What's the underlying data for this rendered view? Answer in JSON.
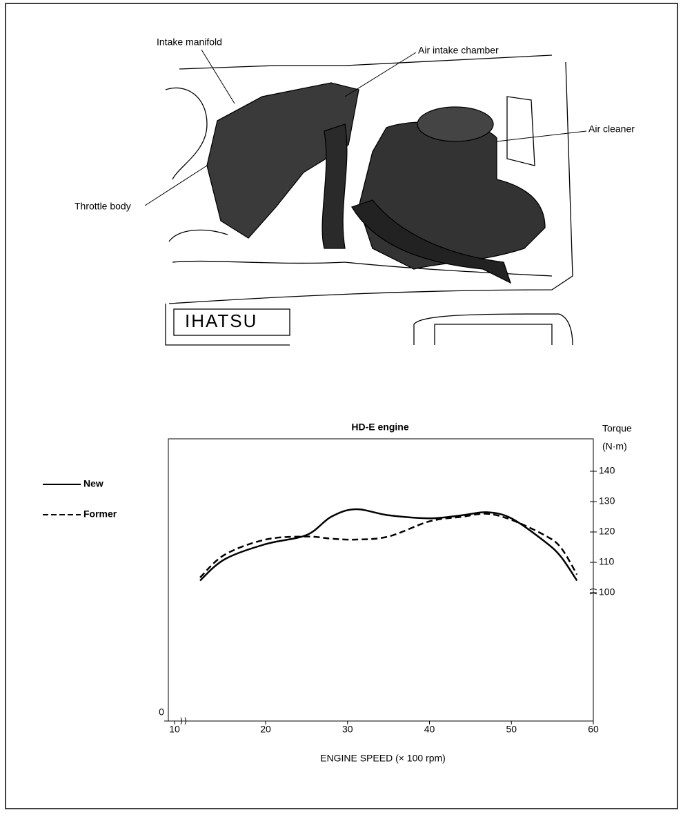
{
  "labels": {
    "intake_manifold": "Intake manifold",
    "air_intake_chamber": "Air intake chamber",
    "air_cleaner": "Air cleaner",
    "throttle_body": "Throttle body",
    "logo": "IHATSU"
  },
  "chart_data": {
    "type": "line",
    "title": "HD-E engine",
    "y_label": "Torque",
    "y_unit": "(N·m)",
    "x_label": "ENGINE SPEED (× 100 rpm)",
    "x": [
      12,
      15,
      20,
      25,
      28,
      31,
      35,
      40,
      44,
      47,
      50,
      54,
      56,
      58
    ],
    "series": [
      {
        "name": "New",
        "color": "#000000",
        "dash": false,
        "values": [
          104,
          111,
          116,
          119,
          125,
          127.5,
          125.5,
          124.5,
          125.5,
          126.5,
          124.5,
          117,
          112,
          104
        ]
      },
      {
        "name": "Former",
        "color": "#000000",
        "dash": true,
        "values": [
          105,
          112.5,
          117.5,
          118.5,
          117.8,
          117.5,
          118.5,
          123.5,
          125,
          126,
          124,
          119,
          115,
          106
        ]
      }
    ],
    "xlim": [
      10,
      60
    ],
    "xticks": [
      10,
      20,
      30,
      40,
      50,
      60
    ],
    "ylim": [
      0,
      150
    ],
    "yticks": [
      0,
      100,
      110,
      120,
      130,
      140
    ],
    "axis_break": true,
    "grid": false,
    "legend": "left"
  }
}
